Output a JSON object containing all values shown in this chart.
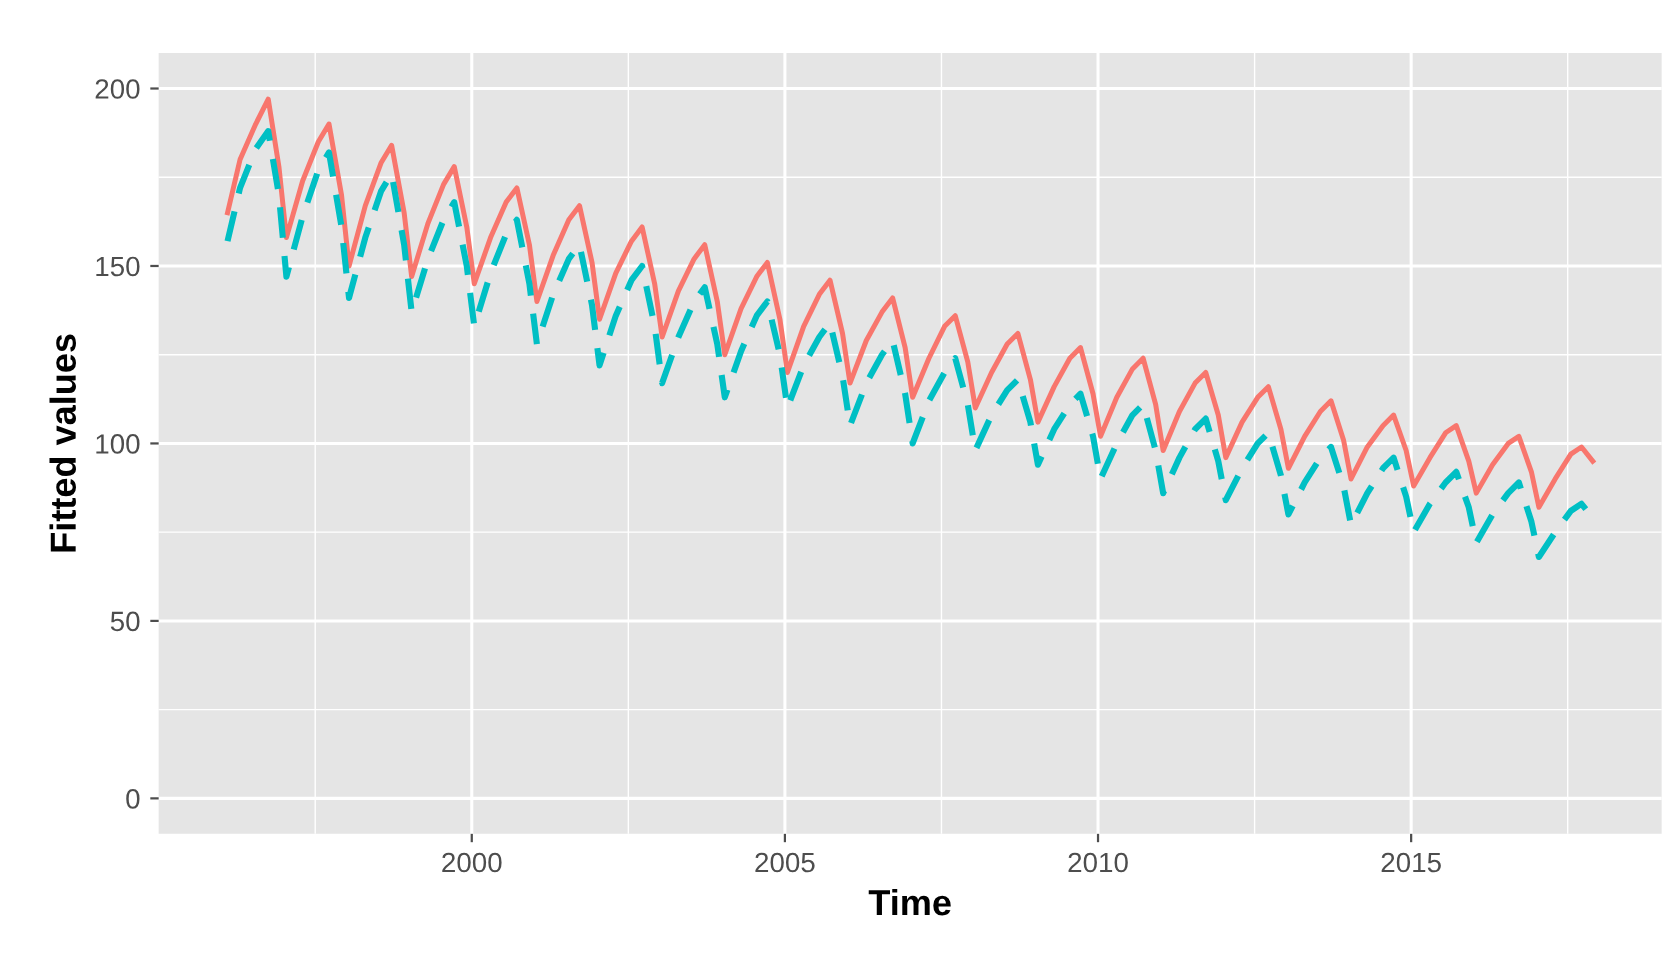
{
  "chart_data": {
    "type": "line",
    "xlabel": "Time",
    "ylabel": "Fitted values",
    "x": [
      1996.1,
      1996.3,
      1996.55,
      1996.75,
      1996.92,
      1997.04,
      1997.3,
      1997.55,
      1997.72,
      1997.92,
      1998.04,
      1998.3,
      1998.55,
      1998.72,
      1998.92,
      1999.04,
      1999.3,
      1999.55,
      1999.72,
      1999.92,
      2000.04,
      2000.3,
      2000.55,
      2000.72,
      2000.92,
      2001.04,
      2001.3,
      2001.55,
      2001.72,
      2001.92,
      2002.04,
      2002.3,
      2002.55,
      2002.72,
      2002.92,
      2003.04,
      2003.3,
      2003.55,
      2003.72,
      2003.92,
      2004.04,
      2004.3,
      2004.55,
      2004.72,
      2004.92,
      2005.04,
      2005.3,
      2005.55,
      2005.72,
      2005.92,
      2006.04,
      2006.3,
      2006.55,
      2006.72,
      2006.92,
      2007.04,
      2007.3,
      2007.55,
      2007.72,
      2007.92,
      2008.04,
      2008.3,
      2008.55,
      2008.72,
      2008.92,
      2009.04,
      2009.3,
      2009.55,
      2009.72,
      2009.92,
      2010.04,
      2010.3,
      2010.55,
      2010.72,
      2010.92,
      2011.04,
      2011.3,
      2011.55,
      2011.72,
      2011.92,
      2012.04,
      2012.3,
      2012.55,
      2012.72,
      2012.92,
      2013.04,
      2013.3,
      2013.55,
      2013.72,
      2013.92,
      2014.04,
      2014.3,
      2014.55,
      2014.72,
      2014.92,
      2015.04,
      2015.3,
      2015.55,
      2015.72,
      2015.92,
      2016.04,
      2016.3,
      2016.55,
      2016.72,
      2016.92,
      2017.04,
      2017.3,
      2017.55,
      2017.72,
      2017.9
    ],
    "series": [
      {
        "color": "#f8766d",
        "line_style": "solid",
        "values": [
          165,
          180,
          190,
          197,
          178,
          158,
          174,
          185,
          190,
          170,
          150,
          167,
          179,
          184,
          165,
          147,
          162,
          173,
          178,
          161,
          145,
          158,
          168,
          172,
          156,
          140,
          153,
          163,
          167,
          151,
          135,
          148,
          157,
          161,
          145,
          130,
          143,
          152,
          156,
          140,
          125,
          138,
          147,
          151,
          135,
          120,
          133,
          142,
          146,
          131,
          117,
          129,
          137,
          141,
          127,
          113,
          124,
          133,
          136,
          123,
          110,
          120,
          128,
          131,
          118,
          106,
          116,
          124,
          127,
          114,
          102,
          113,
          121,
          124,
          111,
          98,
          109,
          117,
          120,
          108,
          96,
          106,
          113,
          116,
          104,
          93,
          102,
          109,
          112,
          101,
          90,
          99,
          105,
          108,
          98,
          88,
          96,
          103,
          105,
          95,
          86,
          94,
          100,
          102,
          92,
          82,
          90,
          97,
          99,
          95
        ]
      },
      {
        "color": "#00bfc4",
        "line_style": "dashed",
        "values": [
          157,
          172,
          183,
          188,
          170,
          147,
          164,
          177,
          182,
          161,
          141,
          158,
          171,
          176,
          156,
          137,
          152,
          163,
          168,
          150,
          133,
          148,
          159,
          163,
          145,
          128,
          142,
          152,
          156,
          139,
          122,
          136,
          146,
          150,
          133,
          117,
          130,
          140,
          144,
          128,
          113,
          126,
          136,
          140,
          125,
          110,
          122,
          130,
          134,
          119,
          105,
          117,
          125,
          129,
          114,
          100,
          112,
          120,
          124,
          111,
          98,
          108,
          115,
          118,
          106,
          94,
          104,
          111,
          114,
          102,
          90,
          100,
          108,
          111,
          98,
          86,
          96,
          104,
          107,
          95,
          84,
          93,
          100,
          103,
          91,
          80,
          89,
          96,
          99,
          88,
          77,
          86,
          93,
          96,
          85,
          75,
          83,
          89,
          92,
          82,
          72,
          80,
          86,
          89,
          78,
          68,
          75,
          81,
          83,
          79
        ]
      }
    ],
    "xlim": [
      1995.0,
      2019.0
    ],
    "ylim": [
      -10,
      210
    ],
    "xticks": [
      2000,
      2005,
      2010,
      2015
    ],
    "yticks": [
      0,
      50,
      100,
      150,
      200
    ],
    "grid": true,
    "legend": false
  }
}
